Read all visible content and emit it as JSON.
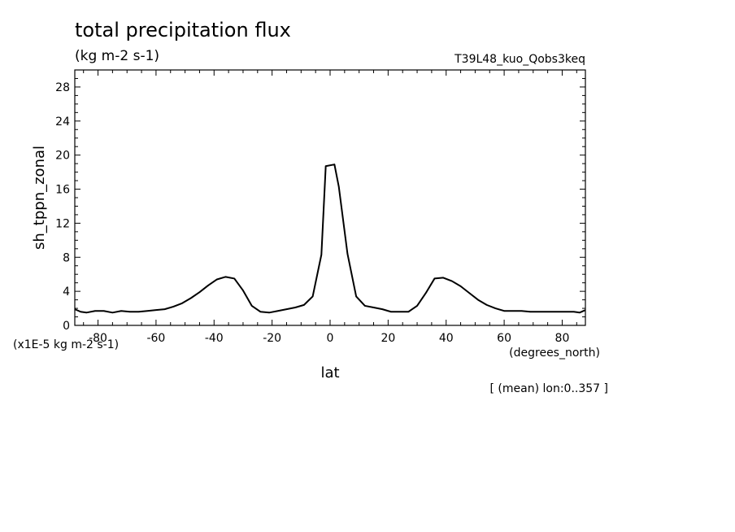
{
  "chart_data": {
    "type": "line",
    "title": "total precipitation flux",
    "units": "(kg m-2 s-1)",
    "run_label": "T39L48_kuo_Qobs3keq",
    "ylabel": "sh_tppn_zonal",
    "xlabel": "lat",
    "x_units": "(degrees_north)",
    "y_scale_note": "(x1E-5 kg m-2 s-1)",
    "footnote": "[ (mean) lon:0..357 ]",
    "xlim": [
      -88,
      88
    ],
    "ylim": [
      0,
      30
    ],
    "xticks_major": [
      -80,
      -60,
      -40,
      -20,
      0,
      20,
      40,
      60,
      80
    ],
    "yticks_major": [
      0,
      4,
      8,
      12,
      16,
      20,
      24,
      28
    ],
    "xtick_labels": [
      "-80",
      "-60",
      "-40",
      "-20",
      "0",
      "20",
      "40",
      "60",
      "80"
    ],
    "ytick_labels": [
      "0",
      "4",
      "8",
      "12",
      "16",
      "20",
      "24",
      "28"
    ],
    "grid": false,
    "line_color": "#000000",
    "series": [
      {
        "x": [
          -88,
          -86,
          -84,
          -81,
          -78,
          -75,
          -72,
          -69,
          -66,
          -63,
          -60,
          -57,
          -54,
          -51,
          -48,
          -45,
          -42,
          -39,
          -36,
          -33,
          -30,
          -27,
          -24,
          -21,
          -18,
          -15,
          -12,
          -9,
          -6,
          -3,
          -1.5,
          1.5,
          3,
          6,
          9,
          12,
          15,
          18,
          21,
          24,
          27,
          30,
          33,
          36,
          39,
          42,
          45,
          48,
          51,
          54,
          57,
          60,
          63,
          66,
          69,
          72,
          75,
          78,
          81,
          84,
          86,
          88
        ],
        "y": [
          1.9,
          1.6,
          1.5,
          1.7,
          1.7,
          1.5,
          1.7,
          1.6,
          1.6,
          1.7,
          1.8,
          1.9,
          2.2,
          2.6,
          3.2,
          3.9,
          4.7,
          5.4,
          5.7,
          5.5,
          4.1,
          2.3,
          1.6,
          1.5,
          1.7,
          1.9,
          2.1,
          2.4,
          3.4,
          8.3,
          18.7,
          18.9,
          16.3,
          8.4,
          3.4,
          2.3,
          2.1,
          1.9,
          1.6,
          1.6,
          1.6,
          2.3,
          3.8,
          5.5,
          5.6,
          5.2,
          4.6,
          3.8,
          3.0,
          2.4,
          2.0,
          1.7,
          1.7,
          1.7,
          1.6,
          1.6,
          1.6,
          1.6,
          1.6,
          1.6,
          1.5,
          1.8
        ]
      }
    ]
  }
}
